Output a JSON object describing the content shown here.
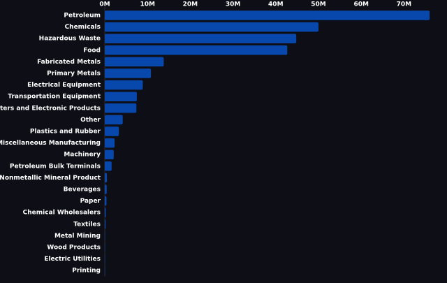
{
  "chart_data": {
    "type": "bar",
    "orientation": "horizontal",
    "categories": [
      "Petroleum",
      "Chemicals",
      "Hazardous Waste",
      "Food",
      "Fabricated Metals",
      "Primary Metals",
      "Electrical Equipment",
      "Transportation Equipment",
      "Computers and Electronic Products",
      "Other",
      "Plastics and Rubber",
      "Miscellaneous Manufacturing",
      "Machinery",
      "Petroleum Bulk Terminals",
      "Nonmetallic Mineral Product",
      "Beverages",
      "Paper",
      "Chemical Wholesalers",
      "Textiles",
      "Metal Mining",
      "Wood Products",
      "Electric Utilities",
      "Printing"
    ],
    "values": [
      76000000,
      50000000,
      44800000,
      42700000,
      13800000,
      10800000,
      8900000,
      7500000,
      7400000,
      4200000,
      3300000,
      2300000,
      2100000,
      1600000,
      500000,
      450000,
      400000,
      250000,
      200000,
      50000,
      30000,
      20000,
      10000
    ],
    "x_ticks": [
      0,
      10000000,
      20000000,
      30000000,
      40000000,
      50000000,
      60000000,
      70000000
    ],
    "x_tick_labels": [
      "0M",
      "10M",
      "20M",
      "30M",
      "40M",
      "50M",
      "60M",
      "70M"
    ],
    "xlim": [
      0,
      80000000
    ],
    "tick_position": "top",
    "grid": false,
    "title": "",
    "xlabel": "",
    "ylabel": "",
    "colors": {
      "bar": "#0848ad",
      "background": "#0e0e16",
      "text": "#ffffff",
      "axis": "#2c2c36"
    }
  }
}
